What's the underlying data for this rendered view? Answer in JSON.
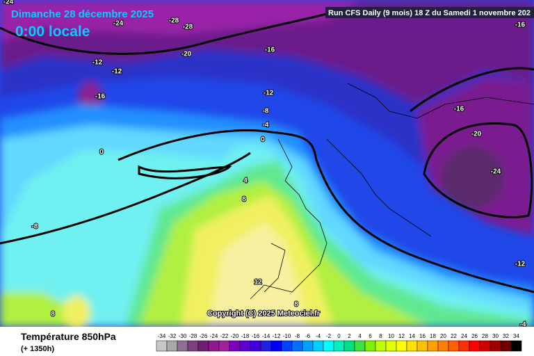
{
  "header": {
    "date": "Dimanche 28 décembre 2025",
    "time": "0:00 locale",
    "run": "Run CFS Daily (9 mois) 18 Z du Samedi 1 novembre 202"
  },
  "map": {
    "labels": [
      "-24",
      "-24",
      "-28",
      "-28",
      "-20",
      "-16",
      "-16",
      "-12",
      "-12",
      "-16",
      "-12",
      "-8",
      "-4",
      "0",
      "0",
      "-16",
      "-20",
      "-24",
      "4",
      "8",
      "-8",
      "-12",
      "12",
      "8",
      "8",
      "-4"
    ],
    "copyright": "Copyright (C) 2025 Meteociel.fr"
  },
  "footer": {
    "field": "Température 850hPa",
    "lead": "(+ 1350h)"
  },
  "legend": {
    "values": [
      -34,
      -32,
      -30,
      -28,
      -26,
      -24,
      -22,
      -20,
      -18,
      -16,
      -14,
      -12,
      -10,
      -8,
      -6,
      -4,
      -2,
      0,
      2,
      4,
      6,
      8,
      10,
      12,
      14,
      16,
      18,
      20,
      22,
      24,
      26,
      28,
      30,
      32,
      34
    ],
    "colors": [
      "#c8c8c8",
      "#a8a8a8",
      "#907090",
      "#804080",
      "#702070",
      "#901890",
      "#a020a0",
      "#8000c0",
      "#6000d0",
      "#4000e0",
      "#2020e0",
      "#0000ff",
      "#0040ff",
      "#0070ff",
      "#00a0ff",
      "#00d0ff",
      "#00ffff",
      "#00f0c0",
      "#00e080",
      "#40e040",
      "#80f000",
      "#c0ff00",
      "#e0ff00",
      "#ffff00",
      "#ffe000",
      "#ffc000",
      "#ffa000",
      "#ff8000",
      "#ff6000",
      "#ff3000",
      "#ff0000",
      "#d00000",
      "#a00000",
      "#700000",
      "#000000"
    ]
  }
}
